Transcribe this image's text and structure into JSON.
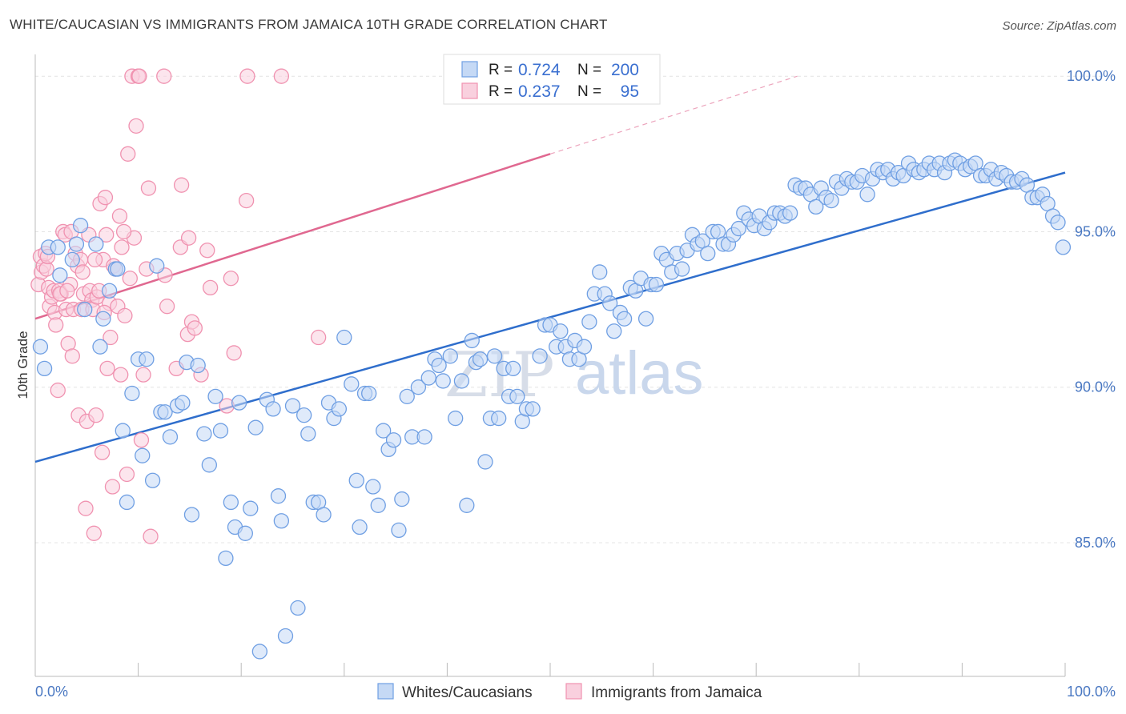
{
  "title": "WHITE/CAUCASIAN VS IMMIGRANTS FROM JAMAICA 10TH GRADE CORRELATION CHART",
  "source": "Source: ZipAtlas.com",
  "watermark": {
    "zip": "ZIP",
    "atlas": "atlas"
  },
  "chart_data": {
    "type": "scatter",
    "title": "WHITE/CAUCASIAN VS IMMIGRANTS FROM JAMAICA 10TH GRADE CORRELATION CHART",
    "xlabel": "",
    "ylabel": "10th Grade",
    "xlim": [
      0,
      100
    ],
    "ylim": [
      80.7,
      100.7
    ],
    "x_tick_labels": [
      "0.0%",
      "100.0%"
    ],
    "y_ticks": [
      {
        "value": 100,
        "label": "100.0%"
      },
      {
        "value": 95,
        "label": "95.0%"
      },
      {
        "value": 90,
        "label": "90.0%"
      },
      {
        "value": 85,
        "label": "85.0%"
      }
    ],
    "grid": true,
    "legend_position": "bottom-center",
    "stats_box": [
      {
        "r_label": "R =",
        "r_value": "0.724",
        "n_label": "N =",
        "n_value": "200"
      },
      {
        "r_label": "R =",
        "r_value": "0.237",
        "n_label": "N =",
        "n_value": "95"
      }
    ],
    "series": [
      {
        "name": "Whites/Caucasians",
        "color": "#6f9fe3",
        "fill": "#c5d9f5",
        "trend_color": "#2f6ecc",
        "trend": {
          "x0": 0,
          "y0": 87.6,
          "x1": 100,
          "y1": 96.9
        },
        "points": [
          [
            0.5,
            91.3
          ],
          [
            0.9,
            90.6
          ],
          [
            1.3,
            94.5
          ],
          [
            2.2,
            94.5
          ],
          [
            2.4,
            93.6
          ],
          [
            3.6,
            94.1
          ],
          [
            4.0,
            94.6
          ],
          [
            4.4,
            95.2
          ],
          [
            4.8,
            92.5
          ],
          [
            5.9,
            94.6
          ],
          [
            6.3,
            91.3
          ],
          [
            6.6,
            92.2
          ],
          [
            7.2,
            93.1
          ],
          [
            7.8,
            93.8
          ],
          [
            8.0,
            93.8
          ],
          [
            8.5,
            88.6
          ],
          [
            8.9,
            86.3
          ],
          [
            9.4,
            89.8
          ],
          [
            10.0,
            90.9
          ],
          [
            10.4,
            87.8
          ],
          [
            10.8,
            90.9
          ],
          [
            11.4,
            87.0
          ],
          [
            11.8,
            93.9
          ],
          [
            12.2,
            89.2
          ],
          [
            12.6,
            89.2
          ],
          [
            13.1,
            88.4
          ],
          [
            13.8,
            89.4
          ],
          [
            14.3,
            89.5
          ],
          [
            14.7,
            90.8
          ],
          [
            15.2,
            85.9
          ],
          [
            15.8,
            90.7
          ],
          [
            16.4,
            88.5
          ],
          [
            16.9,
            87.5
          ],
          [
            17.5,
            89.7
          ],
          [
            18.0,
            88.6
          ],
          [
            18.5,
            84.5
          ],
          [
            19.0,
            86.3
          ],
          [
            19.4,
            85.5
          ],
          [
            19.8,
            89.5
          ],
          [
            20.4,
            85.3
          ],
          [
            20.9,
            86.1
          ],
          [
            21.4,
            88.7
          ],
          [
            21.8,
            81.5
          ],
          [
            22.5,
            89.6
          ],
          [
            23.1,
            89.3
          ],
          [
            23.6,
            86.5
          ],
          [
            23.9,
            85.7
          ],
          [
            24.3,
            82.0
          ],
          [
            25.0,
            89.4
          ],
          [
            25.5,
            82.9
          ],
          [
            26.1,
            89.1
          ],
          [
            26.5,
            88.5
          ],
          [
            27.0,
            86.3
          ],
          [
            27.5,
            86.3
          ],
          [
            28.0,
            85.9
          ],
          [
            28.5,
            89.5
          ],
          [
            29.0,
            89.0
          ],
          [
            29.5,
            89.3
          ],
          [
            30.0,
            91.6
          ],
          [
            30.7,
            90.1
          ],
          [
            31.2,
            87.0
          ],
          [
            31.5,
            85.5
          ],
          [
            32.0,
            89.8
          ],
          [
            32.4,
            89.8
          ],
          [
            32.8,
            86.8
          ],
          [
            33.3,
            86.2
          ],
          [
            33.8,
            88.6
          ],
          [
            34.3,
            88.0
          ],
          [
            34.8,
            88.3
          ],
          [
            35.3,
            85.4
          ],
          [
            35.6,
            86.4
          ],
          [
            36.1,
            89.7
          ],
          [
            36.6,
            88.4
          ],
          [
            37.2,
            90.0
          ],
          [
            37.8,
            88.4
          ],
          [
            38.2,
            90.3
          ],
          [
            38.8,
            90.9
          ],
          [
            39.2,
            90.7
          ],
          [
            39.6,
            90.2
          ],
          [
            40.3,
            91.0
          ],
          [
            40.8,
            89.0
          ],
          [
            41.4,
            90.2
          ],
          [
            41.9,
            86.2
          ],
          [
            42.4,
            91.5
          ],
          [
            42.8,
            90.8
          ],
          [
            43.2,
            90.9
          ],
          [
            43.7,
            87.6
          ],
          [
            44.2,
            89.0
          ],
          [
            44.6,
            91.0
          ],
          [
            45.0,
            89.0
          ],
          [
            45.5,
            90.6
          ],
          [
            46.0,
            89.7
          ],
          [
            46.4,
            90.6
          ],
          [
            46.8,
            89.7
          ],
          [
            47.3,
            88.9
          ],
          [
            47.7,
            89.3
          ],
          [
            48.3,
            89.3
          ],
          [
            49.0,
            91.0
          ],
          [
            49.5,
            92.0
          ],
          [
            50.0,
            92.0
          ],
          [
            50.6,
            91.3
          ],
          [
            51.0,
            91.8
          ],
          [
            51.5,
            91.3
          ],
          [
            51.9,
            90.9
          ],
          [
            52.4,
            91.5
          ],
          [
            52.8,
            90.9
          ],
          [
            53.3,
            91.3
          ],
          [
            53.8,
            92.1
          ],
          [
            54.3,
            93.0
          ],
          [
            54.8,
            93.7
          ],
          [
            55.3,
            93.0
          ],
          [
            55.8,
            92.7
          ],
          [
            56.2,
            91.8
          ],
          [
            56.8,
            92.4
          ],
          [
            57.2,
            92.2
          ],
          [
            57.8,
            93.2
          ],
          [
            58.3,
            93.1
          ],
          [
            58.8,
            93.5
          ],
          [
            59.3,
            92.2
          ],
          [
            59.8,
            93.3
          ],
          [
            60.3,
            93.3
          ],
          [
            60.8,
            94.3
          ],
          [
            61.3,
            94.1
          ],
          [
            61.8,
            93.7
          ],
          [
            62.3,
            94.3
          ],
          [
            62.8,
            93.8
          ],
          [
            63.3,
            94.4
          ],
          [
            63.8,
            94.9
          ],
          [
            64.3,
            94.6
          ],
          [
            64.8,
            94.7
          ],
          [
            65.3,
            94.3
          ],
          [
            65.8,
            95.0
          ],
          [
            66.3,
            95.0
          ],
          [
            66.8,
            94.6
          ],
          [
            67.3,
            94.6
          ],
          [
            67.8,
            94.9
          ],
          [
            68.3,
            95.1
          ],
          [
            68.8,
            95.6
          ],
          [
            69.3,
            95.4
          ],
          [
            69.8,
            95.2
          ],
          [
            70.3,
            95.5
          ],
          [
            70.8,
            95.1
          ],
          [
            71.3,
            95.3
          ],
          [
            71.8,
            95.6
          ],
          [
            72.3,
            95.6
          ],
          [
            72.8,
            95.5
          ],
          [
            73.3,
            95.6
          ],
          [
            73.8,
            96.5
          ],
          [
            74.3,
            96.4
          ],
          [
            74.8,
            96.4
          ],
          [
            75.3,
            96.2
          ],
          [
            75.8,
            95.8
          ],
          [
            76.3,
            96.4
          ],
          [
            76.8,
            96.1
          ],
          [
            77.3,
            96.0
          ],
          [
            77.8,
            96.6
          ],
          [
            78.3,
            96.4
          ],
          [
            78.8,
            96.7
          ],
          [
            79.3,
            96.6
          ],
          [
            79.8,
            96.6
          ],
          [
            80.3,
            96.8
          ],
          [
            80.8,
            96.2
          ],
          [
            81.3,
            96.7
          ],
          [
            81.8,
            97.0
          ],
          [
            82.3,
            96.9
          ],
          [
            82.8,
            97.0
          ],
          [
            83.3,
            96.7
          ],
          [
            83.8,
            96.9
          ],
          [
            84.3,
            96.8
          ],
          [
            84.8,
            97.2
          ],
          [
            85.3,
            97.0
          ],
          [
            85.8,
            96.9
          ],
          [
            86.3,
            97.0
          ],
          [
            86.8,
            97.2
          ],
          [
            87.3,
            97.0
          ],
          [
            87.8,
            97.2
          ],
          [
            88.3,
            96.9
          ],
          [
            88.8,
            97.2
          ],
          [
            89.3,
            97.3
          ],
          [
            89.8,
            97.2
          ],
          [
            90.3,
            97.0
          ],
          [
            90.8,
            97.1
          ],
          [
            91.3,
            97.2
          ],
          [
            91.8,
            96.8
          ],
          [
            92.3,
            96.8
          ],
          [
            92.8,
            97.0
          ],
          [
            93.3,
            96.7
          ],
          [
            93.8,
            96.9
          ],
          [
            94.3,
            96.8
          ],
          [
            94.8,
            96.6
          ],
          [
            95.3,
            96.6
          ],
          [
            95.8,
            96.7
          ],
          [
            96.3,
            96.5
          ],
          [
            96.8,
            96.1
          ],
          [
            97.3,
            96.1
          ],
          [
            97.8,
            96.2
          ],
          [
            98.3,
            95.9
          ],
          [
            98.8,
            95.5
          ],
          [
            99.3,
            95.3
          ],
          [
            99.8,
            94.5
          ]
        ]
      },
      {
        "name": "Immigrants from Jamaica",
        "color": "#f092b0",
        "fill": "#f9d0de",
        "trend_color": "#e06890",
        "trend": {
          "x0": 0,
          "y0": 92.2,
          "x1": 50,
          "y1": 97.5
        },
        "trend_dash_end": {
          "x": 74,
          "y": 100.0
        },
        "points": [
          [
            0.3,
            93.3
          ],
          [
            0.5,
            94.2
          ],
          [
            0.6,
            93.7
          ],
          [
            0.8,
            93.9
          ],
          [
            1.0,
            94.3
          ],
          [
            1.1,
            93.8
          ],
          [
            1.3,
            93.2
          ],
          [
            1.4,
            92.6
          ],
          [
            1.6,
            92.9
          ],
          [
            1.8,
            93.1
          ],
          [
            1.9,
            92.4
          ],
          [
            2.0,
            92.0
          ],
          [
            2.2,
            89.9
          ],
          [
            2.3,
            93.1
          ],
          [
            2.5,
            93.0
          ],
          [
            2.7,
            95.0
          ],
          [
            2.9,
            94.9
          ],
          [
            3.0,
            92.5
          ],
          [
            3.2,
            91.4
          ],
          [
            3.4,
            93.3
          ],
          [
            3.5,
            95.0
          ],
          [
            3.6,
            91.0
          ],
          [
            3.7,
            92.5
          ],
          [
            3.9,
            94.3
          ],
          [
            4.1,
            93.9
          ],
          [
            4.2,
            89.1
          ],
          [
            4.4,
            94.1
          ],
          [
            4.5,
            92.5
          ],
          [
            4.7,
            93.0
          ],
          [
            4.9,
            86.1
          ],
          [
            5.0,
            88.9
          ],
          [
            5.2,
            94.9
          ],
          [
            5.3,
            93.1
          ],
          [
            5.5,
            92.8
          ],
          [
            5.6,
            92.5
          ],
          [
            5.7,
            85.3
          ],
          [
            5.9,
            89.1
          ],
          [
            6.0,
            92.9
          ],
          [
            6.2,
            93.1
          ],
          [
            6.3,
            95.9
          ],
          [
            6.5,
            87.9
          ],
          [
            6.6,
            94.1
          ],
          [
            6.8,
            96.1
          ],
          [
            6.9,
            94.9
          ],
          [
            7.0,
            90.6
          ],
          [
            7.2,
            92.7
          ],
          [
            7.3,
            91.6
          ],
          [
            7.5,
            86.8
          ],
          [
            7.6,
            93.9
          ],
          [
            7.8,
            93.8
          ],
          [
            8.0,
            92.6
          ],
          [
            8.2,
            95.5
          ],
          [
            8.3,
            90.4
          ],
          [
            8.4,
            94.5
          ],
          [
            8.7,
            92.3
          ],
          [
            8.9,
            87.2
          ],
          [
            9.0,
            97.5
          ],
          [
            9.2,
            93.5
          ],
          [
            9.4,
            100.0
          ],
          [
            9.6,
            94.8
          ],
          [
            9.8,
            98.4
          ],
          [
            10.0,
            100.0
          ],
          [
            10.1,
            100.0
          ],
          [
            10.3,
            88.3
          ],
          [
            10.5,
            90.4
          ],
          [
            10.8,
            93.8
          ],
          [
            11.0,
            96.4
          ],
          [
            11.2,
            85.2
          ],
          [
            12.5,
            100.0
          ],
          [
            12.6,
            93.6
          ],
          [
            12.8,
            92.6
          ],
          [
            13.7,
            90.6
          ],
          [
            14.1,
            94.5
          ],
          [
            14.2,
            96.5
          ],
          [
            14.8,
            91.7
          ],
          [
            14.9,
            94.8
          ],
          [
            15.2,
            92.1
          ],
          [
            15.5,
            91.9
          ],
          [
            16.1,
            90.4
          ],
          [
            16.7,
            94.4
          ],
          [
            17.0,
            93.2
          ],
          [
            18.6,
            89.4
          ],
          [
            19.0,
            93.5
          ],
          [
            19.3,
            91.1
          ],
          [
            20.5,
            96.0
          ],
          [
            20.6,
            100.0
          ],
          [
            23.9,
            100.0
          ],
          [
            27.5,
            91.6
          ],
          [
            1.2,
            94.2
          ],
          [
            2.4,
            93.0
          ],
          [
            3.1,
            93.1
          ],
          [
            5.8,
            94.1
          ],
          [
            4.6,
            93.7
          ],
          [
            6.7,
            92.4
          ],
          [
            8.6,
            95.0
          ]
        ]
      }
    ]
  }
}
